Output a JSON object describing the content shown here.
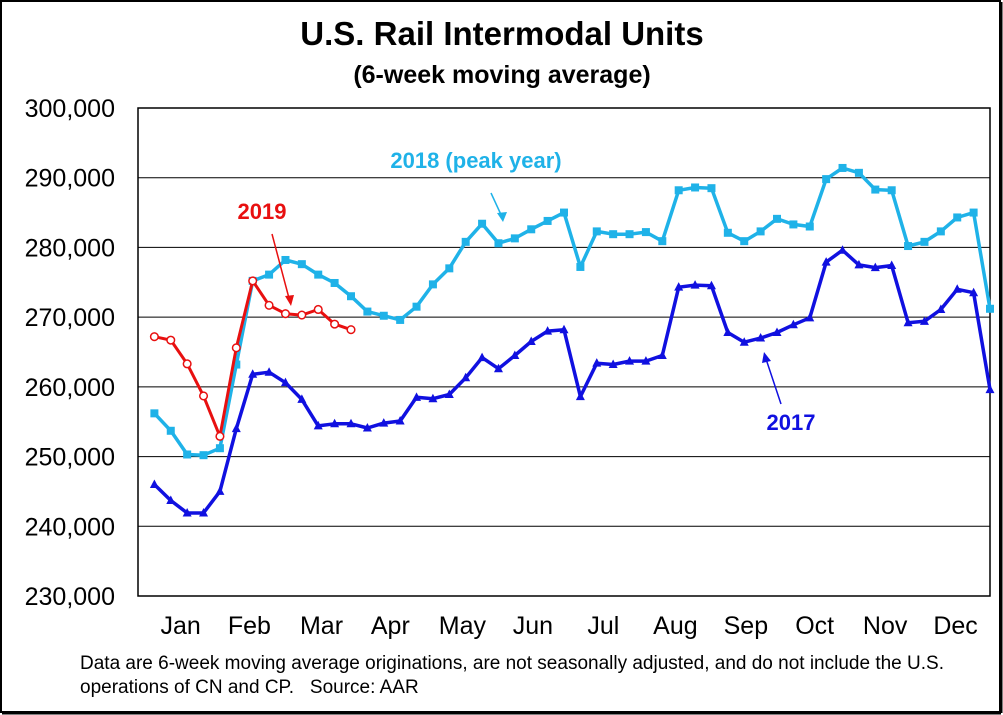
{
  "chart_data": {
    "type": "line",
    "title": "U.S. Rail Intermodal Units",
    "subtitle": "(6-week moving average)",
    "ylabel": "",
    "xlabel": "",
    "ylim": [
      230000,
      300000
    ],
    "yticks": [
      "230,000",
      "240,000",
      "250,000",
      "260,000",
      "270,000",
      "280,000",
      "290,000",
      "300,000"
    ],
    "yticks_values": [
      230000,
      240000,
      250000,
      260000,
      270000,
      280000,
      290000,
      300000
    ],
    "x_range": [
      0,
      52
    ],
    "months": [
      "Jan",
      "Feb",
      "Mar",
      "Apr",
      "May",
      "Jun",
      "Jul",
      "Aug",
      "Sep",
      "Oct",
      "Nov",
      "Dec"
    ],
    "grid": true,
    "series": [
      {
        "name": "2018 (peak year)",
        "color": "#1fb2e8",
        "marker": "square",
        "x": [
          1,
          2,
          3,
          4,
          5,
          6,
          7,
          8,
          9,
          10,
          11,
          12,
          13,
          14,
          15,
          16,
          17,
          18,
          19,
          20,
          21,
          22,
          23,
          24,
          25,
          26,
          27,
          28,
          29,
          30,
          31,
          32,
          33,
          34,
          35,
          36,
          37,
          38,
          39,
          40,
          41,
          42,
          43,
          44,
          45,
          46,
          47,
          48,
          49,
          50,
          51,
          52
        ],
        "values": [
          256200,
          253700,
          250300,
          250200,
          251200,
          263200,
          275200,
          276100,
          278200,
          277600,
          276100,
          274900,
          273000,
          270800,
          270200,
          269600,
          271500,
          274700,
          277000,
          280800,
          283400,
          280600,
          281300,
          282600,
          283800,
          285000,
          277200,
          282300,
          281900,
          281900,
          282200,
          280900,
          288200,
          288600,
          288500,
          282100,
          280900,
          282300,
          284100,
          283300,
          283000,
          289800,
          291400,
          290700,
          288300,
          288200,
          280200,
          280800,
          282300,
          284300,
          285000,
          271200
        ]
      },
      {
        "name": "2017",
        "color": "#1010e0",
        "marker": "triangle",
        "x": [
          1,
          2,
          3,
          4,
          5,
          6,
          7,
          8,
          9,
          10,
          11,
          12,
          13,
          14,
          15,
          16,
          17,
          18,
          19,
          20,
          21,
          22,
          23,
          24,
          25,
          26,
          27,
          28,
          29,
          30,
          31,
          32,
          33,
          34,
          35,
          36,
          37,
          38,
          39,
          40,
          41,
          42,
          43,
          44,
          45,
          46,
          47,
          48,
          49,
          50,
          51,
          52
        ],
        "values": [
          246000,
          243700,
          241900,
          241900,
          245000,
          254000,
          261800,
          262100,
          260600,
          258200,
          254400,
          254700,
          254700,
          254100,
          254800,
          255100,
          258500,
          258300,
          258900,
          261300,
          264200,
          262600,
          264500,
          266500,
          268000,
          268200,
          258600,
          263400,
          263200,
          263700,
          263700,
          264500,
          274300,
          274600,
          274500,
          267800,
          266400,
          267000,
          267800,
          268900,
          269900,
          277900,
          279600,
          277500,
          277100,
          277400,
          269200,
          269400,
          271100,
          274000,
          273500,
          259600
        ]
      },
      {
        "name": "2019",
        "color": "#e81010",
        "marker": "circle-open",
        "x": [
          1,
          2,
          3,
          4,
          5,
          6,
          7,
          8,
          9,
          10,
          11,
          12,
          13
        ],
        "values": [
          267200,
          266700,
          263300,
          258700,
          252900,
          265600,
          275200,
          271700,
          270500,
          270300,
          271100,
          269000,
          268200
        ]
      }
    ],
    "annotations": {
      "label_2018": "2018 (peak year)",
      "label_2019": "2019",
      "label_2017": "2017"
    },
    "note": "Data are 6-week moving average originations, are not seasonally adjusted, and do not include the U.S. operations of CN and CP.   Source: AAR"
  }
}
